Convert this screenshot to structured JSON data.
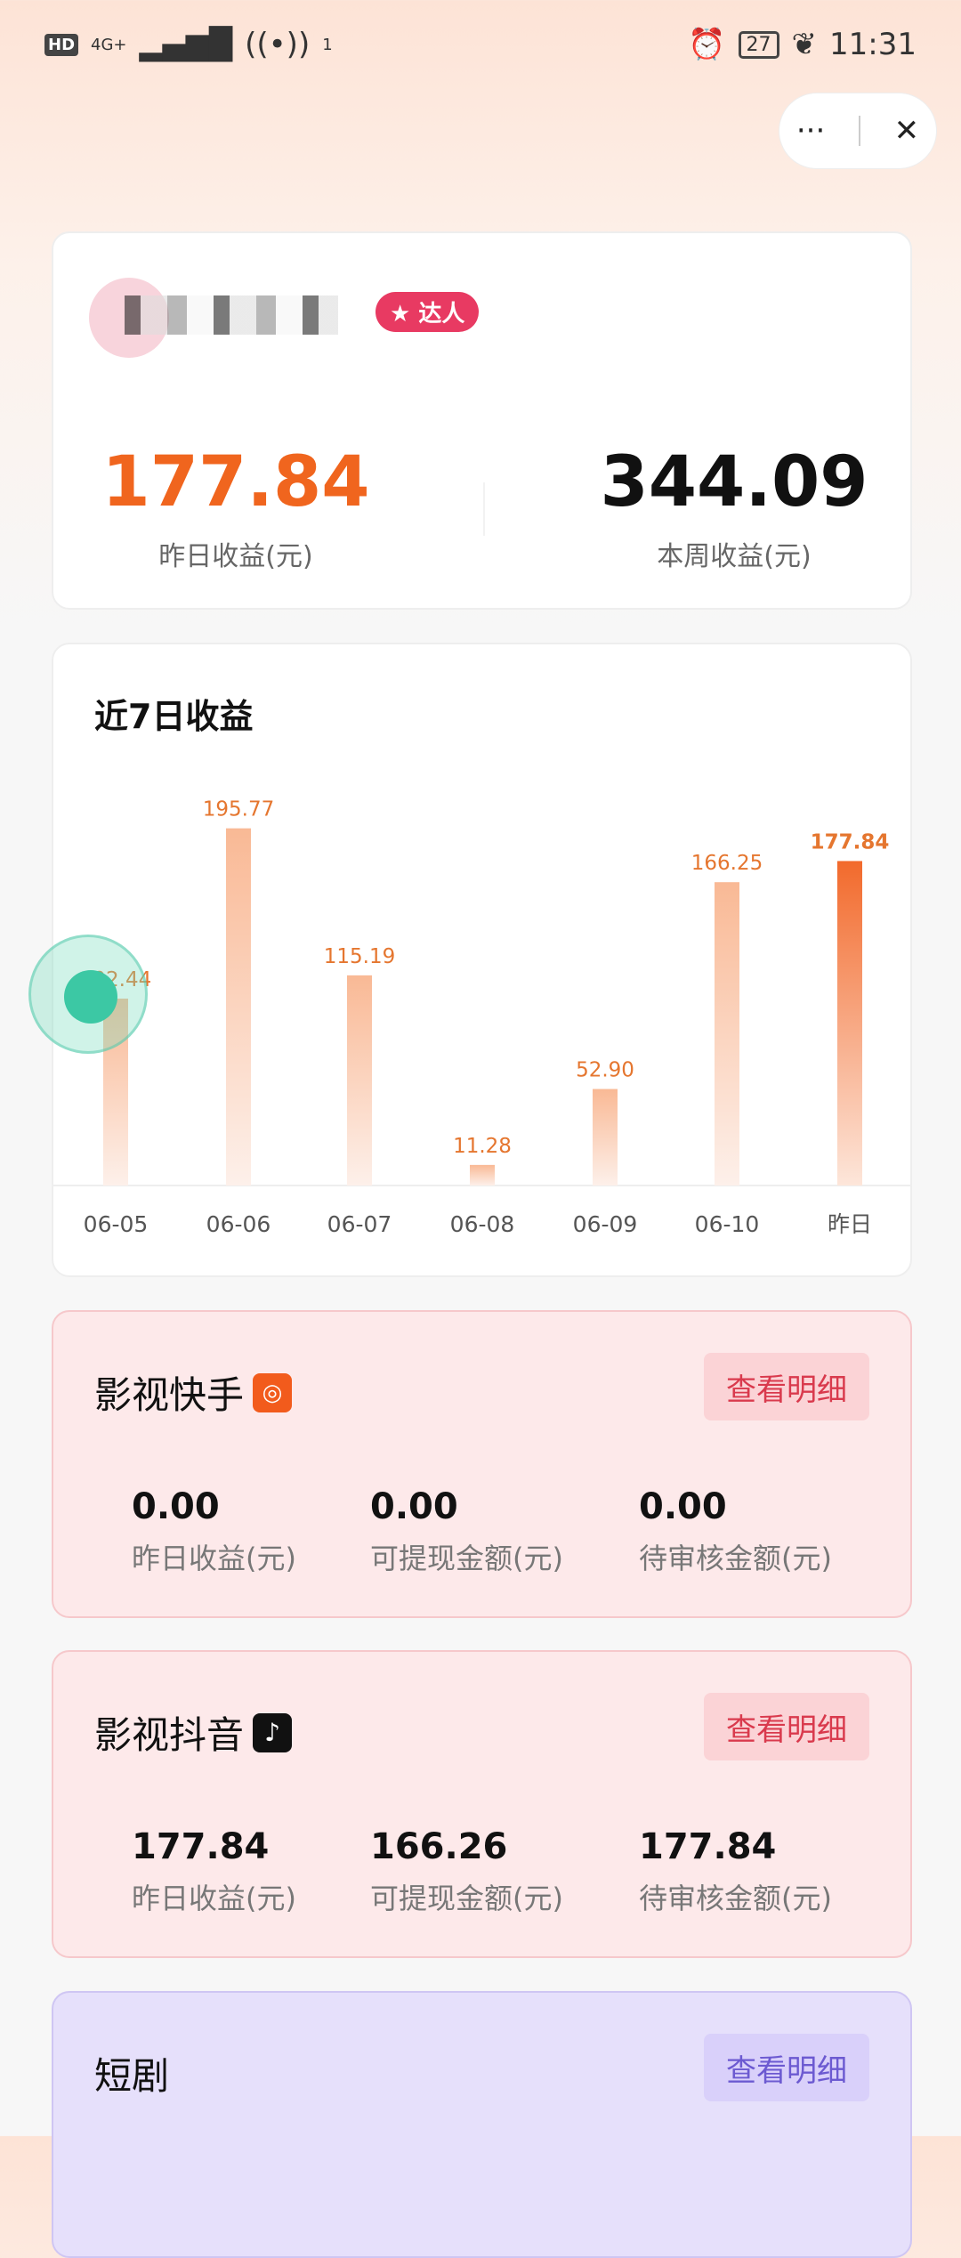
{
  "status_bar": {
    "hd": "HD",
    "network": "4G+",
    "hotspot_count": "1",
    "battery": "27",
    "time": "11:31"
  },
  "capsule": {
    "more": "···",
    "close": "✕"
  },
  "summary": {
    "badge": "达人",
    "yesterday_value": "177.84",
    "yesterday_label": "昨日收益(元)",
    "week_value": "344.09",
    "week_label": "本周收益(元)"
  },
  "chart_data": {
    "type": "bar",
    "title": "近7日收益",
    "categories": [
      "06-05",
      "06-06",
      "06-07",
      "06-08",
      "06-09",
      "06-10",
      "昨日"
    ],
    "values": [
      102.44,
      195.77,
      115.19,
      11.28,
      52.9,
      166.25,
      177.84
    ],
    "labels": [
      "102.44",
      "195.77",
      "115.19",
      "11.28",
      "52.90",
      "166.25",
      "177.84"
    ],
    "colors": {
      "bar": "#f7b28a",
      "highlight": "#f26a2c",
      "label": "#e5762f"
    }
  },
  "sections": [
    {
      "title": "影视快手",
      "icon": "kuaishou-icon",
      "button": "查看明细",
      "stats": [
        {
          "value": "0.00",
          "label": "昨日收益(元)"
        },
        {
          "value": "0.00",
          "label": "可提现金额(元)"
        },
        {
          "value": "0.00",
          "label": "待审核金额(元)"
        }
      ]
    },
    {
      "title": "影视抖音",
      "icon": "douyin-icon",
      "button": "查看明细",
      "stats": [
        {
          "value": "177.84",
          "label": "昨日收益(元)"
        },
        {
          "value": "166.26",
          "label": "可提现金额(元)"
        },
        {
          "value": "177.84",
          "label": "待审核金额(元)"
        }
      ]
    },
    {
      "title": "短剧",
      "button": "查看明细"
    }
  ]
}
